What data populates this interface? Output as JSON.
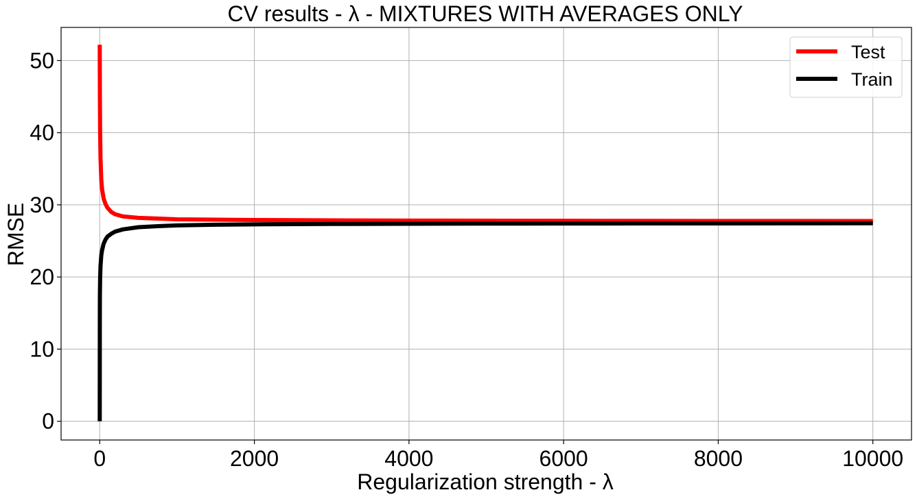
{
  "chart_data": {
    "type": "line",
    "title": "CV results - λ - MIXTURES WITH AVERAGES ONLY",
    "xlabel": "Regularization strength - λ",
    "ylabel": "RMSE",
    "xlim": [
      -500,
      10500
    ],
    "ylim": [
      -2.6,
      54.6
    ],
    "xticks": [
      0,
      2000,
      4000,
      6000,
      8000,
      10000
    ],
    "yticks": [
      0,
      10,
      20,
      30,
      40,
      50
    ],
    "grid": true,
    "legend_position": "top-right",
    "series": [
      {
        "name": "Test",
        "color": "#ff0000",
        "x": [
          0,
          2,
          5,
          10,
          20,
          30,
          50,
          75,
          100,
          150,
          200,
          300,
          500,
          750,
          1000,
          1500,
          2000,
          3000,
          4000,
          5000,
          6000,
          7000,
          8000,
          9000,
          10000
        ],
        "y": [
          52.2,
          45.0,
          40.0,
          36.5,
          33.5,
          32.2,
          30.9,
          30.1,
          29.6,
          29.0,
          28.7,
          28.4,
          28.2,
          28.1,
          28.0,
          27.95,
          27.9,
          27.85,
          27.82,
          27.8,
          27.79,
          27.78,
          27.77,
          27.77,
          27.76
        ]
      },
      {
        "name": "Train",
        "color": "#000000",
        "x": [
          0,
          1,
          2,
          5,
          10,
          20,
          30,
          50,
          75,
          100,
          150,
          200,
          300,
          500,
          750,
          1000,
          1500,
          2000,
          3000,
          4000,
          5000,
          6000,
          7000,
          8000,
          9000,
          10000
        ],
        "y": [
          0,
          14.0,
          17.5,
          19.8,
          21.5,
          23.0,
          23.7,
          24.6,
          25.2,
          25.6,
          26.0,
          26.3,
          26.6,
          26.9,
          27.05,
          27.15,
          27.25,
          27.3,
          27.35,
          27.38,
          27.4,
          27.41,
          27.42,
          27.43,
          27.44,
          27.45
        ]
      }
    ]
  }
}
